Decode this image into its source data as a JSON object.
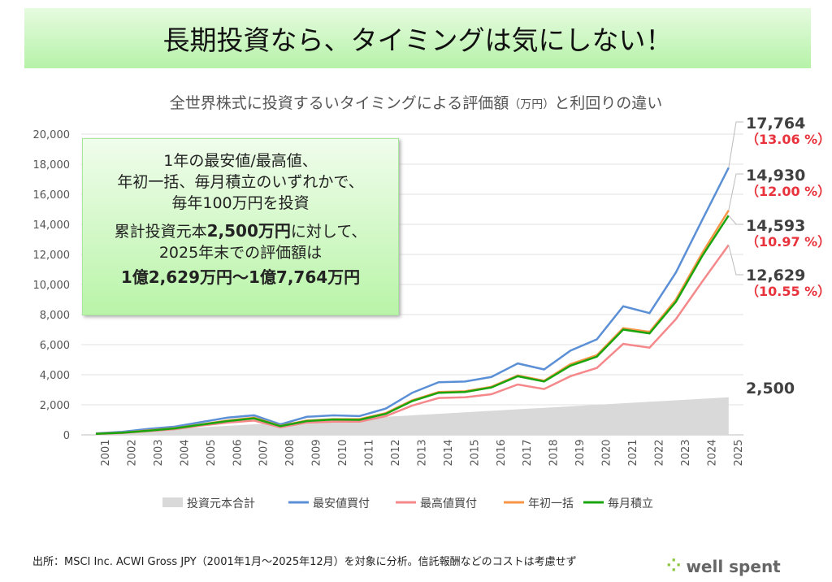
{
  "banner": "長期投資なら、タイミングは気にしない！",
  "subtitle_main": "全世界株式に投資するいタイミングによる評価額",
  "subtitle_unit": "（万円）",
  "subtitle_tail": "と利回りの違い",
  "note": {
    "l1": "1年の最安値/最高値、",
    "l2": "年初一括、毎月積立のいずれかで、",
    "l3": "毎年100万円を投資",
    "l4a": "累計投資元本",
    "l4b": "2,500万円",
    "l4c": "に対して、",
    "l5": "2025年末での評価額は",
    "l6": "1億2,629万円〜1億7,764万円"
  },
  "end_labels": [
    {
      "value": "17,764",
      "pct": "（13.06 %）"
    },
    {
      "value": "14,930",
      "pct": "（12.00 %）"
    },
    {
      "value": "14,593",
      "pct": "（10.97 %）"
    },
    {
      "value": "12,629",
      "pct": "（10.55 %）"
    },
    {
      "value": "2,500",
      "pct": ""
    }
  ],
  "source": "出所：MSCI Inc. ACWI Gross JPY（2001年1月～2025年12月）を対象に分析。信託報酬などのコストは考慮せず",
  "logo": "well spent",
  "chart_data": {
    "type": "line",
    "title": "全世界株式に投資するいタイミングによる評価額（万円）と利回りの違い",
    "x": [
      "2001",
      "2002",
      "2003",
      "2004",
      "2005",
      "2006",
      "2007",
      "2008",
      "2009",
      "2010",
      "2011",
      "2012",
      "2013",
      "2014",
      "2015",
      "2016",
      "2017",
      "2018",
      "2019",
      "2020",
      "2021",
      "2022",
      "2023",
      "2024",
      "2025"
    ],
    "ylim": [
      0,
      20000
    ],
    "yticks": [
      "0",
      "2,000",
      "4,000",
      "6,000",
      "8,000",
      "10,000",
      "12,000",
      "14,000",
      "16,000",
      "18,000",
      "20,000"
    ],
    "legend_position": "bottom",
    "series": [
      {
        "name": "投資元本合計",
        "type": "area",
        "color": "#d9d9d9",
        "values": [
          100,
          200,
          300,
          400,
          500,
          600,
          700,
          800,
          900,
          1000,
          1100,
          1200,
          1300,
          1400,
          1500,
          1600,
          1700,
          1800,
          1900,
          2000,
          2100,
          2200,
          2300,
          2400,
          2500
        ]
      },
      {
        "name": "最安値買付",
        "color": "#5b8fd6",
        "values": [
          100,
          200,
          400,
          550,
          850,
          1150,
          1300,
          700,
          1200,
          1300,
          1250,
          1750,
          2800,
          3500,
          3550,
          3850,
          4750,
          4350,
          5600,
          6350,
          8550,
          8100,
          10800,
          14300,
          17764
        ]
      },
      {
        "name": "最高値買付",
        "color": "#f4888a",
        "values": [
          60,
          120,
          250,
          380,
          620,
          820,
          950,
          500,
          820,
          880,
          880,
          1250,
          1950,
          2450,
          2500,
          2700,
          3350,
          3050,
          3900,
          4450,
          6050,
          5800,
          7700,
          10200,
          12629
        ]
      },
      {
        "name": "年初一括",
        "color": "#f79646",
        "values": [
          80,
          150,
          300,
          450,
          700,
          950,
          1150,
          600,
          950,
          1050,
          1050,
          1450,
          2300,
          2850,
          2900,
          3200,
          3950,
          3600,
          4700,
          5300,
          7100,
          6850,
          9000,
          12100,
          14930
        ]
      },
      {
        "name": "毎月積立",
        "color": "#1aa40e",
        "values": [
          70,
          140,
          280,
          430,
          680,
          920,
          1100,
          580,
          920,
          1020,
          1000,
          1400,
          2250,
          2800,
          2850,
          3150,
          3900,
          3550,
          4600,
          5200,
          7000,
          6750,
          8850,
          11900,
          14593
        ]
      }
    ]
  }
}
